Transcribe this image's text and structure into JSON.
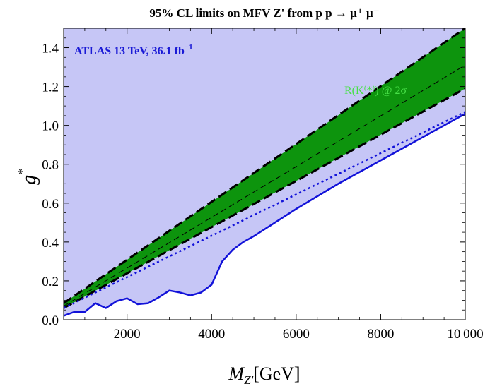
{
  "chart_data": {
    "type": "area",
    "title": "95% CL limits on MFV Z' from p p → μ⁺ μ⁻",
    "xlabel": {
      "main": "M",
      "sub": "Z'",
      "unit": "[GeV]"
    },
    "ylabel": {
      "main": "g",
      "sup": "*"
    },
    "xlim": [
      500,
      10000
    ],
    "ylim": [
      0,
      1.5
    ],
    "xticks": [
      {
        "v": 2000,
        "label": "2000"
      },
      {
        "v": 4000,
        "label": "4000"
      },
      {
        "v": 6000,
        "label": "6000"
      },
      {
        "v": 8000,
        "label": "8000"
      },
      {
        "v": 10000,
        "label": "10 000"
      }
    ],
    "yticks": [
      {
        "v": 0.0,
        "label": "0.0"
      },
      {
        "v": 0.2,
        "label": "0.2"
      },
      {
        "v": 0.4,
        "label": "0.4"
      },
      {
        "v": 0.6,
        "label": "0.6"
      },
      {
        "v": 0.8,
        "label": "0.8"
      },
      {
        "v": 1.0,
        "label": "1.0"
      },
      {
        "v": 1.2,
        "label": "1.2"
      },
      {
        "v": 1.4,
        "label": "1.4"
      }
    ],
    "annotations": {
      "atlas": {
        "text": "ATLAS 13 TeV, 36.1 fb",
        "sup": "−1"
      },
      "rk": "R(K⁽*⁾) @ 2σ"
    },
    "excluded_limit_solid": {
      "x": [
        500,
        750,
        1000,
        1250,
        1500,
        1750,
        2000,
        2250,
        2500,
        2750,
        3000,
        3250,
        3500,
        3750,
        4000,
        4250,
        4500,
        4750,
        5000,
        5500,
        6000,
        7000,
        8000,
        9000,
        10000
      ],
      "y": [
        0.02,
        0.04,
        0.04,
        0.085,
        0.06,
        0.095,
        0.11,
        0.08,
        0.085,
        0.115,
        0.15,
        0.14,
        0.125,
        0.14,
        0.18,
        0.3,
        0.36,
        0.4,
        0.43,
        0.5,
        0.57,
        0.7,
        0.82,
        0.94,
        1.06
      ]
    },
    "expected_limit_dotted": {
      "x": [
        500,
        10000
      ],
      "y": [
        0.06,
        1.07
      ]
    },
    "rk_band_upper": {
      "x": [
        500,
        10000
      ],
      "y": [
        0.085,
        1.5
      ]
    },
    "rk_band_center": {
      "x": [
        500,
        10000
      ],
      "y": [
        0.07,
        1.31
      ]
    },
    "rk_band_lower": {
      "x": [
        500,
        10000
      ],
      "y": [
        0.06,
        1.19
      ]
    },
    "colors": {
      "excluded_fill": "#c6c6f6",
      "band_fill": "#0d940d",
      "limit_line": "#1212d9",
      "band_edge": "#000000",
      "rk_label": "#48e048",
      "atlas_label": "#1a1ad6"
    }
  }
}
